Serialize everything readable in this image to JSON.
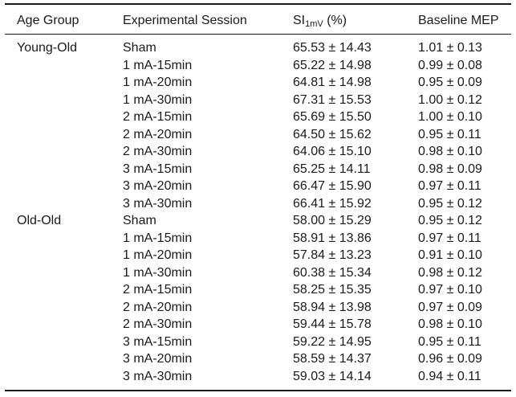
{
  "table": {
    "headers": {
      "age_group": "Age Group",
      "session": "Experimental Session",
      "si_main": "SI",
      "si_sub": "1mV",
      "si_unit": "(%)",
      "mep": "Baseline MEP"
    },
    "rows": [
      {
        "group": "Young-Old",
        "session": "Sham",
        "si": "65.53 ± 14.43",
        "mep": "1.01 ± 0.13"
      },
      {
        "group": "",
        "session": "1 mA-15min",
        "si": "65.22 ± 14.98",
        "mep": "0.99 ± 0.08"
      },
      {
        "group": "",
        "session": "1 mA-20min",
        "si": "64.81 ± 14.98",
        "mep": "0.95 ± 0.09"
      },
      {
        "group": "",
        "session": "1 mA-30min",
        "si": "67.31 ± 15.53",
        "mep": "1.00 ± 0.12"
      },
      {
        "group": "",
        "session": "2 mA-15min",
        "si": "65.69 ± 15.50",
        "mep": "1.00 ± 0.10"
      },
      {
        "group": "",
        "session": "2 mA-20min",
        "si": "64.50 ± 15.62",
        "mep": "0.95 ± 0.11"
      },
      {
        "group": "",
        "session": "2 mA-30min",
        "si": "64.06 ± 15.10",
        "mep": "0.98 ± 0.10"
      },
      {
        "group": "",
        "session": "3 mA-15min",
        "si": "65.25 ± 14.11",
        "mep": "0.98 ± 0.09"
      },
      {
        "group": "",
        "session": "3 mA-20min",
        "si": "66.47 ± 15.90",
        "mep": "0.97 ± 0.11"
      },
      {
        "group": "",
        "session": "3 mA-30min",
        "si": "66.41 ± 15.92",
        "mep": "0.95 ± 0.12"
      },
      {
        "group": "Old-Old",
        "session": "Sham",
        "si": "58.00 ± 15.29",
        "mep": "0.95 ± 0.12"
      },
      {
        "group": "",
        "session": "1 mA-15min",
        "si": "58.91 ± 13.86",
        "mep": "0.97 ± 0.11"
      },
      {
        "group": "",
        "session": "1 mA-20min",
        "si": "57.84 ± 13.23",
        "mep": "0.91 ± 0.10"
      },
      {
        "group": "",
        "session": "1 mA-30min",
        "si": "60.38 ± 15.34",
        "mep": "0.98 ± 0.12"
      },
      {
        "group": "",
        "session": "2 mA-15min",
        "si": "58.25 ± 15.35",
        "mep": "0.97 ± 0.10"
      },
      {
        "group": "",
        "session": "2 mA-20min",
        "si": "58.94 ± 13.98",
        "mep": "0.97 ± 0.09"
      },
      {
        "group": "",
        "session": "2 mA-30min",
        "si": "59.44 ± 15.78",
        "mep": "0.98 ± 0.10"
      },
      {
        "group": "",
        "session": "3 mA-15min",
        "si": "59.22 ± 14.95",
        "mep": "0.95 ± 0.11"
      },
      {
        "group": "",
        "session": "3 mA-20min",
        "si": "58.59 ± 14.37",
        "mep": "0.96 ± 0.09"
      },
      {
        "group": "",
        "session": "3 mA-30min",
        "si": "59.03 ± 14.14",
        "mep": "0.94 ± 0.11"
      }
    ]
  }
}
